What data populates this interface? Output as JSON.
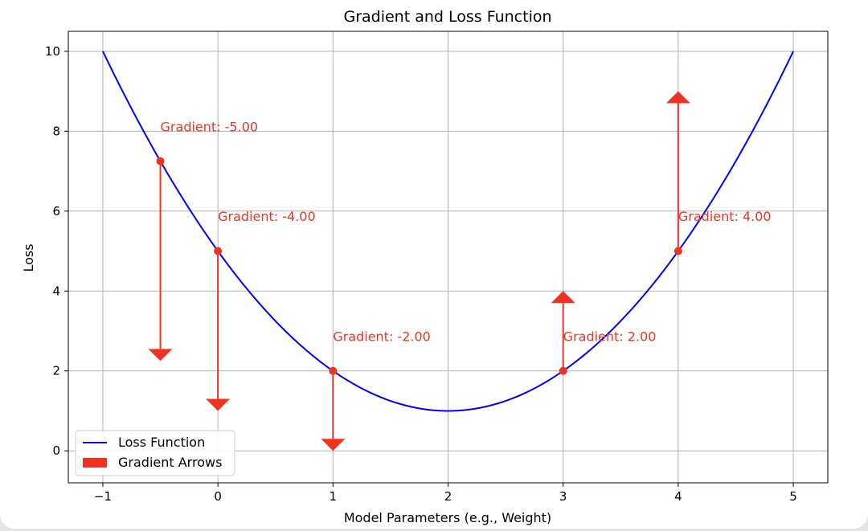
{
  "chart_data": {
    "type": "line",
    "title": "Gradient and Loss Function",
    "xlabel": "Model Parameters (e.g., Weight)",
    "ylabel": "Loss",
    "xlim": [
      -1.3,
      5.3
    ],
    "ylim": [
      -0.8,
      10.5
    ],
    "xticks": [
      -1,
      0,
      1,
      2,
      3,
      4,
      5
    ],
    "xtick_labels": [
      "−1",
      "0",
      "1",
      "2",
      "3",
      "4",
      "5"
    ],
    "yticks": [
      0,
      2,
      4,
      6,
      8,
      10
    ],
    "ytick_labels": [
      "0",
      "2",
      "4",
      "6",
      "8",
      "10"
    ],
    "grid": true,
    "series": [
      {
        "name": "Loss Function",
        "kind": "line",
        "function": "(x-2)^2+1",
        "x_range": [
          -1,
          5
        ],
        "color": "#0000ff"
      }
    ],
    "points": [
      {
        "x": -0.5,
        "y": 7.25,
        "gradient": -5,
        "label": "Gradient: -5.00"
      },
      {
        "x": 0,
        "y": 5,
        "gradient": -4,
        "label": "Gradient: -4.00"
      },
      {
        "x": 1,
        "y": 2,
        "gradient": -2,
        "label": "Gradient: -2.00"
      },
      {
        "x": 3,
        "y": 2,
        "gradient": 2,
        "label": "Gradient: 2.00"
      },
      {
        "x": 4,
        "y": 5,
        "gradient": 4,
        "label": "Gradient: 4.00"
      }
    ],
    "arrow_color": "#ee3322",
    "legend": {
      "placement": "lower-left",
      "entries": [
        {
          "label": "Loss Function",
          "kind": "line",
          "color": "#0000ff"
        },
        {
          "label": "Gradient Arrows",
          "kind": "patch",
          "color": "#ee3322"
        }
      ]
    }
  }
}
